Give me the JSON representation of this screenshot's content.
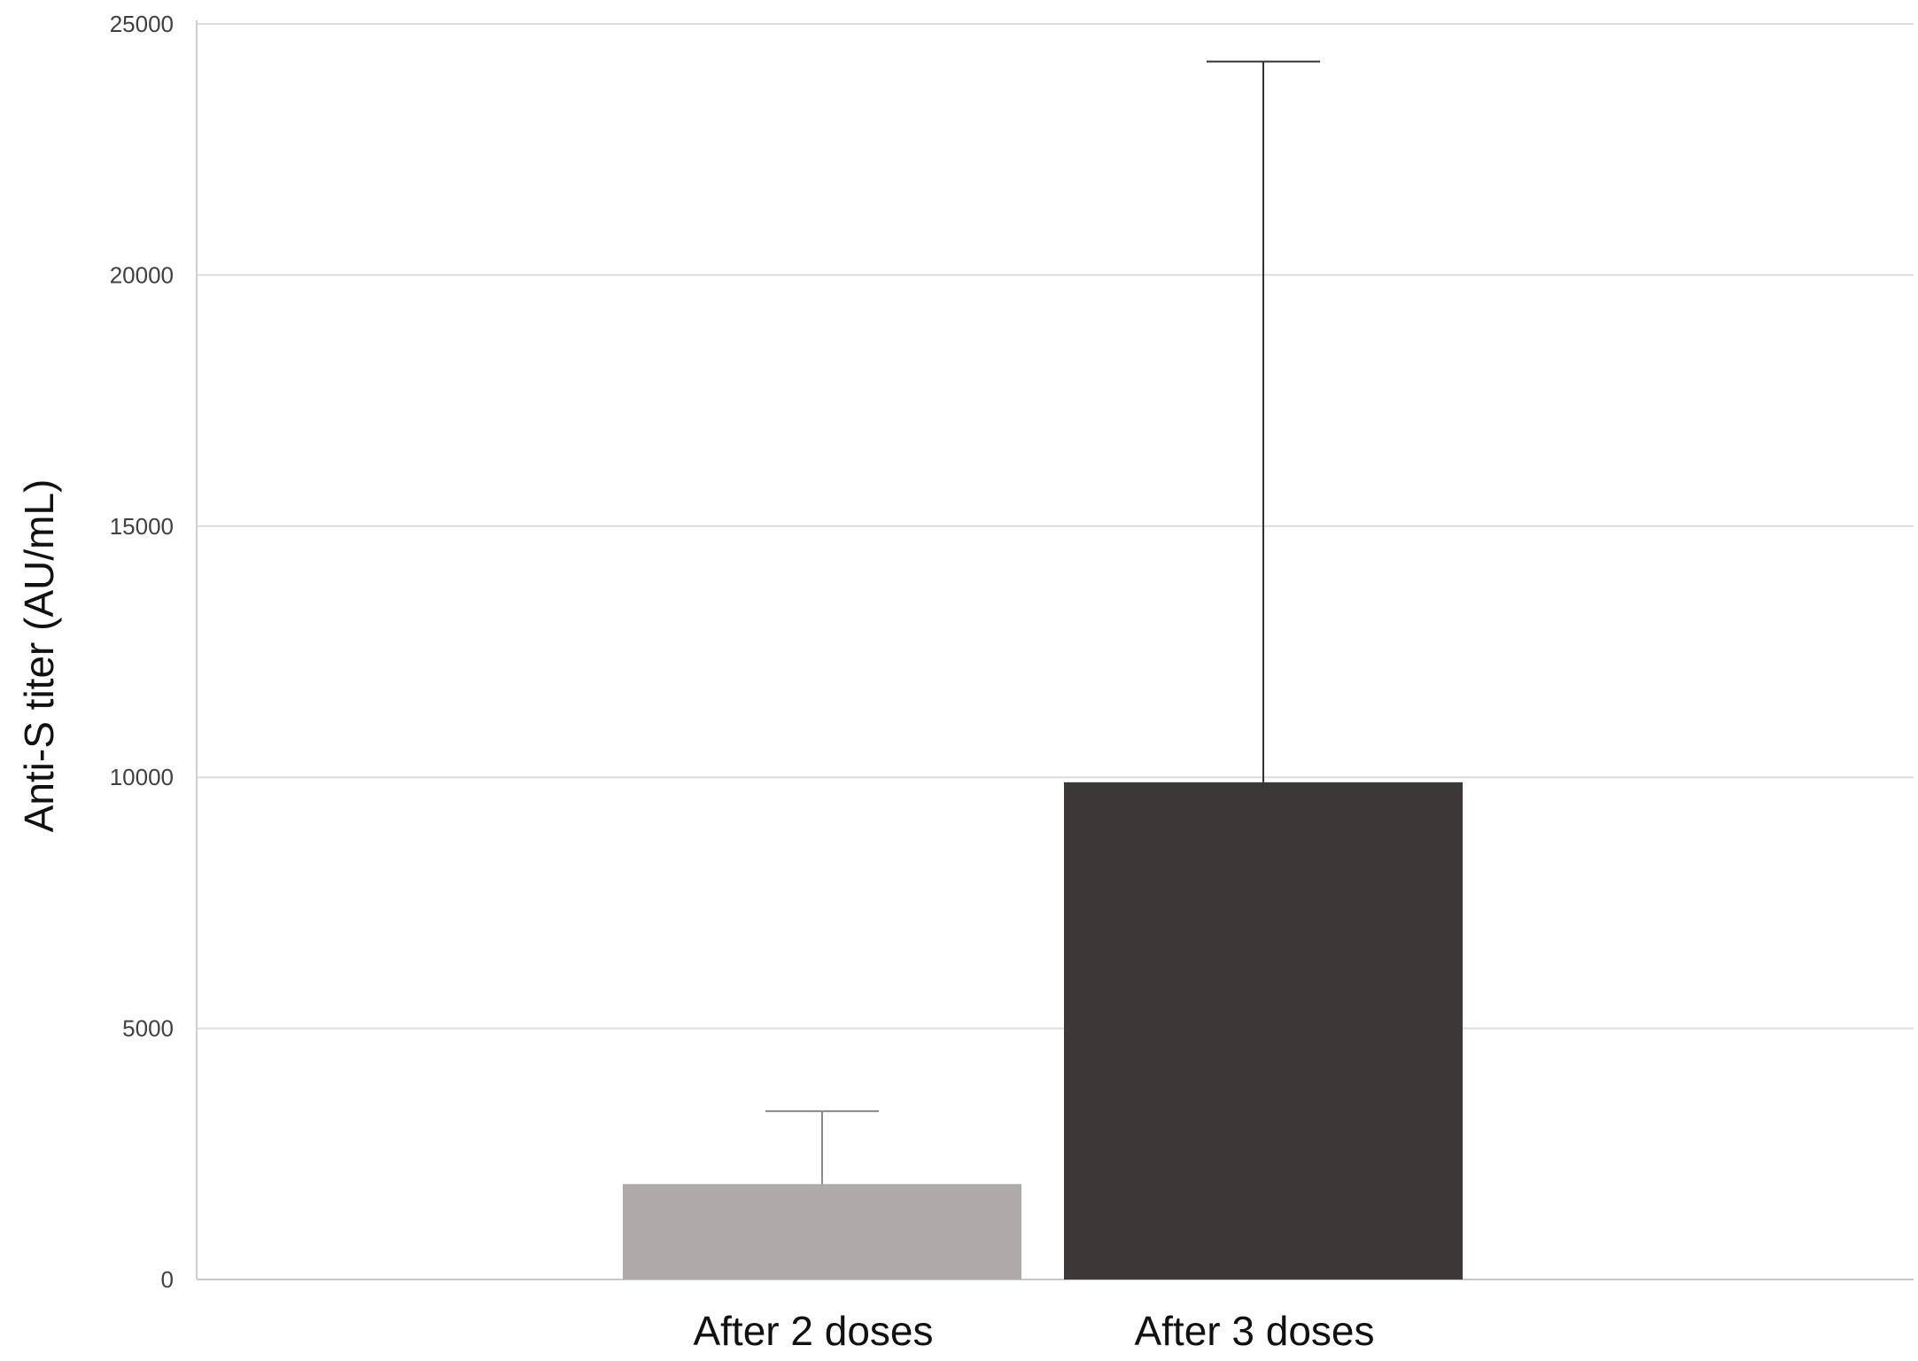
{
  "chart_data": {
    "type": "bar",
    "categories": [
      "After 2 doses",
      "After 3 doses"
    ],
    "values": [
      1900,
      9900
    ],
    "error_upper": [
      3350,
      24250
    ],
    "colors": [
      "#aeaaa9",
      "#3c3838"
    ],
    "title": "",
    "xlabel": "",
    "ylabel": "Anti-S titer (AU/mL)",
    "ylim": [
      0,
      25000
    ],
    "yticks": [
      0,
      5000,
      10000,
      15000,
      20000,
      25000
    ],
    "ytick_labels": [
      "0",
      "5000",
      "10000",
      "15000",
      "20000",
      "25000"
    ],
    "grid": true,
    "legend": "none"
  }
}
